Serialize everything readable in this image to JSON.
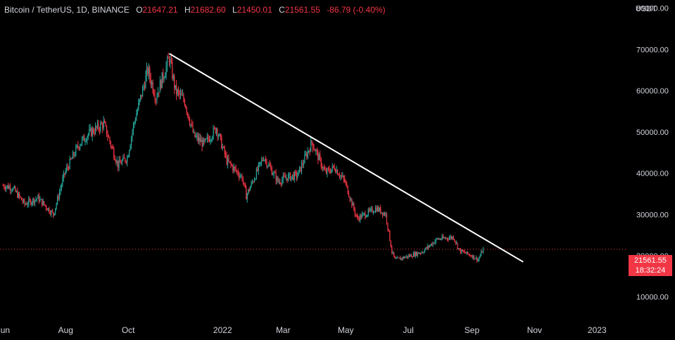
{
  "legend": {
    "symbol": "Bitcoin / TetherUS, 1D, BINANCE",
    "open_label": "O",
    "open": "21647.21",
    "high_label": "H",
    "high": "21682.60",
    "low_label": "L",
    "low": "21450.01",
    "close_label": "C",
    "close": "21561.55",
    "change": "-86.79 (-0.40%)"
  },
  "currency": "USDT",
  "last_price": {
    "value": "21561.55",
    "countdown": "18:32:24"
  },
  "colors": {
    "up": "#26a69a",
    "down": "#f23645",
    "trend": "#ffffff",
    "background": "#000000"
  },
  "chart_data": {
    "type": "candlestick",
    "y_axis": {
      "side": "right",
      "ticks": [
        10000,
        20000,
        30000,
        40000,
        50000,
        60000,
        70000,
        80000
      ],
      "labels": [
        "10000.00",
        "20000.00",
        "30000.00",
        "40000.00",
        "50000.00",
        "60000.00",
        "70000.00",
        "80000.00"
      ],
      "range": [
        4500,
        82000
      ]
    },
    "x_axis": {
      "labels": [
        {
          "text": "Jun",
          "date": "2021-06-01"
        },
        {
          "text": "Aug",
          "date": "2021-08-01"
        },
        {
          "text": "Oct",
          "date": "2021-10-01"
        },
        {
          "text": "2022",
          "date": "2022-01-01"
        },
        {
          "text": "Mar",
          "date": "2022-03-01"
        },
        {
          "text": "May",
          "date": "2022-05-01"
        },
        {
          "text": "Jul",
          "date": "2022-07-01"
        },
        {
          "text": "Sep",
          "date": "2022-09-01"
        },
        {
          "text": "Nov",
          "date": "2022-11-01"
        },
        {
          "text": "2023",
          "date": "2023-01-01"
        }
      ],
      "range": [
        "2021-05-29",
        "2023-01-31"
      ]
    },
    "price_path": [
      [
        "2021-06-01",
        37000
      ],
      [
        "2021-06-10",
        36500
      ],
      [
        "2021-06-22",
        32500
      ],
      [
        "2021-07-05",
        34000
      ],
      [
        "2021-07-20",
        30000
      ],
      [
        "2021-07-31",
        40000
      ],
      [
        "2021-08-14",
        47000
      ],
      [
        "2021-08-23",
        49500
      ],
      [
        "2021-09-07",
        52000
      ],
      [
        "2021-09-21",
        42000
      ],
      [
        "2021-09-30",
        43800
      ],
      [
        "2021-10-06",
        51500
      ],
      [
        "2021-10-20",
        65000
      ],
      [
        "2021-10-28",
        58500
      ],
      [
        "2021-11-10",
        68000
      ],
      [
        "2021-11-16",
        60000
      ],
      [
        "2021-11-25",
        57500
      ],
      [
        "2021-12-04",
        49000
      ],
      [
        "2021-12-14",
        47000
      ],
      [
        "2021-12-26",
        51000
      ],
      [
        "2022-01-05",
        43000
      ],
      [
        "2022-01-20",
        39000
      ],
      [
        "2022-01-24",
        34500
      ],
      [
        "2022-02-10",
        44000
      ],
      [
        "2022-02-24",
        38000
      ],
      [
        "2022-03-05",
        39000
      ],
      [
        "2022-03-15",
        39500
      ],
      [
        "2022-03-29",
        47500
      ],
      [
        "2022-04-11",
        40000
      ],
      [
        "2022-04-20",
        41500
      ],
      [
        "2022-04-30",
        38000
      ],
      [
        "2022-05-12",
        29000
      ],
      [
        "2022-05-31",
        31500
      ],
      [
        "2022-06-09",
        30000
      ],
      [
        "2022-06-15",
        21000
      ],
      [
        "2022-06-18",
        19000
      ],
      [
        "2022-06-30",
        19800
      ],
      [
        "2022-07-15",
        21000
      ],
      [
        "2022-07-29",
        24000
      ],
      [
        "2022-08-14",
        24500
      ],
      [
        "2022-08-20",
        21200
      ],
      [
        "2022-09-01",
        20000
      ],
      [
        "2022-09-07",
        19000
      ],
      [
        "2022-09-12",
        21600
      ]
    ],
    "trendline": {
      "start": [
        "2021-11-10",
        69000
      ],
      "end": [
        "2022-10-21",
        18500
      ]
    },
    "last_price_line": 21561.55
  }
}
